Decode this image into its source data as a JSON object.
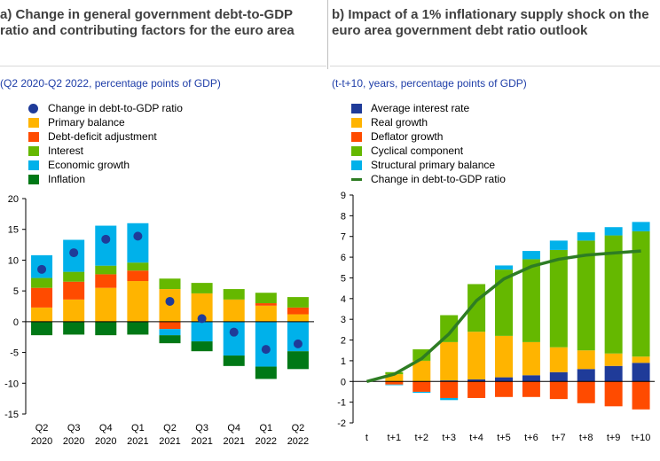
{
  "colors": {
    "dark_blue": "#1f3b99",
    "orange": "#ffb400",
    "red_orange": "#ff4b00",
    "green": "#65b800",
    "light_blue": "#00b1ea",
    "dark_green": "#007816",
    "line_green": "#2e7d23"
  },
  "panel_a": {
    "title": "a) Change in general government debt-to-GDP ratio and contributing factors for the euro area",
    "subtitle": "(Q2 2020-Q2 2022, percentage points of GDP)",
    "legend": [
      {
        "label": "Change in debt-to-GDP ratio",
        "color": "#1f3b99",
        "kind": "dot"
      },
      {
        "label": "Primary balance",
        "color": "#ffb400",
        "kind": "box"
      },
      {
        "label": "Debt-deficit adjustment",
        "color": "#ff4b00",
        "kind": "box"
      },
      {
        "label": "Interest",
        "color": "#65b800",
        "kind": "box"
      },
      {
        "label": "Economic growth",
        "color": "#00b1ea",
        "kind": "box"
      },
      {
        "label": "Inflation",
        "color": "#007816",
        "kind": "box"
      }
    ]
  },
  "panel_b": {
    "title": "b) Impact of a 1% inflationary supply shock on the euro area government debt ratio outlook",
    "subtitle": "(t-t+10, years, percentage points of GDP)",
    "legend": [
      {
        "label": "Average interest rate",
        "color": "#1f3b99",
        "kind": "box"
      },
      {
        "label": "Real growth",
        "color": "#ffb400",
        "kind": "box"
      },
      {
        "label": "Deflator growth",
        "color": "#ff4b00",
        "kind": "box"
      },
      {
        "label": "Cyclical component",
        "color": "#65b800",
        "kind": "box"
      },
      {
        "label": "Structural primary balance",
        "color": "#00b1ea",
        "kind": "box"
      },
      {
        "label": "Change in debt-to-GDP ratio",
        "color": "#2e7d23",
        "kind": "line"
      }
    ]
  },
  "chart_data": [
    {
      "type": "bar",
      "stacked": true,
      "categories": [
        [
          "Q2",
          "2020"
        ],
        [
          "Q3",
          "2020"
        ],
        [
          "Q4",
          "2020"
        ],
        [
          "Q1",
          "2021"
        ],
        [
          "Q2",
          "2021"
        ],
        [
          "Q3",
          "2021"
        ],
        [
          "Q4",
          "2021"
        ],
        [
          "Q1",
          "2022"
        ],
        [
          "Q2",
          "2022"
        ]
      ],
      "ylim": [
        -15,
        20
      ],
      "yticks": [
        -15,
        -10,
        -5,
        0,
        5,
        10,
        15,
        20
      ],
      "grid": false,
      "series": [
        {
          "name": "Primary balance",
          "color": "#ffb400",
          "values": [
            2.3,
            3.6,
            5.5,
            6.6,
            5.3,
            4.6,
            3.6,
            2.6,
            1.2
          ]
        },
        {
          "name": "Debt-deficit adjustment",
          "color": "#ff4b00",
          "values": [
            3.2,
            2.9,
            2.2,
            1.7,
            -1.2,
            0.0,
            0.0,
            0.4,
            1.1
          ]
        },
        {
          "name": "Interest",
          "color": "#65b800",
          "values": [
            1.6,
            1.6,
            1.4,
            1.3,
            1.7,
            1.7,
            1.7,
            1.7,
            1.7
          ]
        },
        {
          "name": "Economic growth",
          "color": "#00b1ea",
          "values": [
            3.7,
            5.2,
            6.5,
            6.4,
            -1.0,
            -3.2,
            -5.5,
            -7.3,
            -4.8
          ]
        },
        {
          "name": "Inflation",
          "color": "#007816",
          "values": [
            -2.2,
            -2.1,
            -2.2,
            -2.1,
            -1.3,
            -1.6,
            -1.7,
            -2.0,
            -2.9
          ]
        }
      ],
      "points": {
        "name": "Change in debt-to-GDP ratio",
        "color": "#1f3b99",
        "values": [
          8.5,
          11.2,
          13.4,
          13.9,
          3.3,
          0.5,
          -1.7,
          -4.5,
          -3.6
        ]
      }
    },
    {
      "type": "bar",
      "stacked": true,
      "categories": [
        "t",
        "t+1",
        "t+2",
        "t+3",
        "t+4",
        "t+5",
        "t+6",
        "t+7",
        "t+8",
        "t+9",
        "t+10"
      ],
      "ylim": [
        -2,
        9
      ],
      "yticks": [
        -2,
        -1,
        0,
        1,
        2,
        3,
        4,
        5,
        6,
        7,
        8,
        9
      ],
      "grid": false,
      "series": [
        {
          "name": "Average interest rate",
          "color": "#1f3b99",
          "values": [
            0,
            0.0,
            0.0,
            0.05,
            0.1,
            0.2,
            0.3,
            0.45,
            0.6,
            0.75,
            0.9
          ]
        },
        {
          "name": "Real growth",
          "color": "#ffb400",
          "values": [
            0,
            0.35,
            1.0,
            1.85,
            2.3,
            2.0,
            1.6,
            1.2,
            0.9,
            0.6,
            0.3
          ]
        },
        {
          "name": "Deflator growth",
          "color": "#ff4b00",
          "values": [
            0,
            -0.15,
            -0.5,
            -0.8,
            -0.8,
            -0.75,
            -0.75,
            -0.85,
            -1.05,
            -1.2,
            -1.35
          ]
        },
        {
          "name": "Cyclical component",
          "color": "#65b800",
          "values": [
            0,
            0.1,
            0.55,
            1.3,
            2.3,
            3.2,
            4.0,
            4.7,
            5.3,
            5.7,
            6.05
          ]
        },
        {
          "name": "Structural primary balance",
          "color": "#00b1ea",
          "values": [
            0,
            -0.03,
            -0.05,
            -0.1,
            0.0,
            0.2,
            0.4,
            0.45,
            0.4,
            0.4,
            0.45
          ]
        }
      ],
      "line": {
        "name": "Change in debt-to-GDP ratio",
        "color": "#2e7d23",
        "values": [
          0.0,
          0.35,
          1.1,
          2.3,
          3.9,
          4.95,
          5.55,
          5.9,
          6.1,
          6.2,
          6.3
        ]
      }
    }
  ]
}
